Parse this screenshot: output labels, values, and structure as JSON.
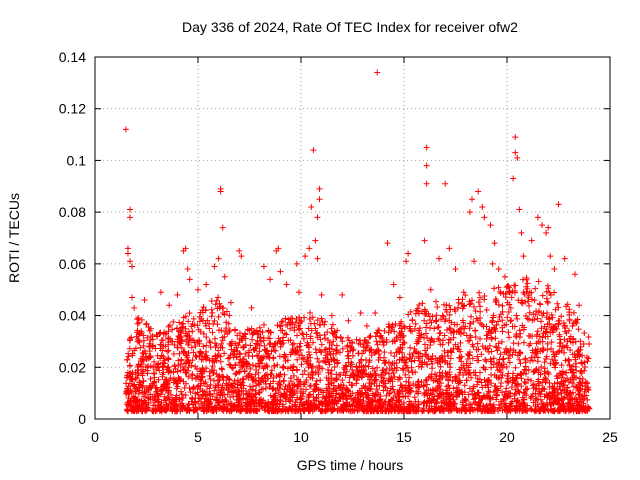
{
  "chart_data": {
    "type": "scatter",
    "title": "Day 336 of 2024, Rate Of TEC Index for receiver ofw2",
    "xlabel": "GPS time / hours",
    "ylabel": "ROTI / TECUs",
    "xlim": [
      0,
      25
    ],
    "ylim": [
      0,
      0.14
    ],
    "xticks": [
      0,
      5,
      10,
      15,
      20,
      25
    ],
    "yticks": [
      0,
      0.02,
      0.04,
      0.06,
      0.08,
      0.1,
      0.12,
      0.14
    ],
    "xtick_labels": [
      "0",
      "5",
      "10",
      "15",
      "20",
      "25"
    ],
    "ytick_labels": [
      "0",
      "0.02",
      "0.04",
      "0.06",
      "0.08",
      "0.1",
      "0.12",
      "0.14"
    ],
    "grid": true,
    "marker": "+",
    "series": [
      {
        "color": "#ff0000",
        "points": [
          [
            1.5,
            0.112
          ],
          [
            1.7,
            0.081
          ],
          [
            1.7,
            0.078
          ],
          [
            1.6,
            0.066
          ],
          [
            1.6,
            0.064
          ],
          [
            1.7,
            0.061
          ],
          [
            1.8,
            0.059
          ],
          [
            1.8,
            0.047
          ],
          [
            1.9,
            0.043
          ],
          [
            2.1,
            0.039
          ],
          [
            2.4,
            0.046
          ],
          [
            3.2,
            0.049
          ],
          [
            3.6,
            0.044
          ],
          [
            4.0,
            0.048
          ],
          [
            4.3,
            0.065
          ],
          [
            4.4,
            0.066
          ],
          [
            4.5,
            0.058
          ],
          [
            4.6,
            0.054
          ],
          [
            5.0,
            0.05
          ],
          [
            5.4,
            0.052
          ],
          [
            5.8,
            0.059
          ],
          [
            6.0,
            0.062
          ],
          [
            6.1,
            0.088
          ],
          [
            6.1,
            0.089
          ],
          [
            6.2,
            0.074
          ],
          [
            6.3,
            0.055
          ],
          [
            6.6,
            0.045
          ],
          [
            7.0,
            0.065
          ],
          [
            7.1,
            0.063
          ],
          [
            7.6,
            0.043
          ],
          [
            8.2,
            0.059
          ],
          [
            8.5,
            0.054
          ],
          [
            8.8,
            0.065
          ],
          [
            8.9,
            0.066
          ],
          [
            9.0,
            0.057
          ],
          [
            9.3,
            0.052
          ],
          [
            9.8,
            0.06
          ],
          [
            9.9,
            0.049
          ],
          [
            10.2,
            0.063
          ],
          [
            10.4,
            0.066
          ],
          [
            10.5,
            0.082
          ],
          [
            10.6,
            0.104
          ],
          [
            10.7,
            0.069
          ],
          [
            10.8,
            0.078
          ],
          [
            10.9,
            0.089
          ],
          [
            10.9,
            0.085
          ],
          [
            10.8,
            0.062
          ],
          [
            11.0,
            0.048
          ],
          [
            11.5,
            0.04
          ],
          [
            12.0,
            0.048
          ],
          [
            12.3,
            0.038
          ],
          [
            12.9,
            0.041
          ],
          [
            13.2,
            0.036
          ],
          [
            13.6,
            0.041
          ],
          [
            13.7,
            0.134
          ],
          [
            14.2,
            0.068
          ],
          [
            14.5,
            0.052
          ],
          [
            14.8,
            0.047
          ],
          [
            15.1,
            0.061
          ],
          [
            15.2,
            0.064
          ],
          [
            15.6,
            0.042
          ],
          [
            16.0,
            0.069
          ],
          [
            16.1,
            0.105
          ],
          [
            16.1,
            0.098
          ],
          [
            16.1,
            0.091
          ],
          [
            16.3,
            0.05
          ],
          [
            16.7,
            0.062
          ],
          [
            17.0,
            0.091
          ],
          [
            17.2,
            0.066
          ],
          [
            17.5,
            0.058
          ],
          [
            17.9,
            0.049
          ],
          [
            18.2,
            0.08
          ],
          [
            18.3,
            0.085
          ],
          [
            18.4,
            0.061
          ],
          [
            18.6,
            0.088
          ],
          [
            18.8,
            0.082
          ],
          [
            18.9,
            0.078
          ],
          [
            19.2,
            0.075
          ],
          [
            19.3,
            0.06
          ],
          [
            19.4,
            0.068
          ],
          [
            19.6,
            0.058
          ],
          [
            19.9,
            0.055
          ],
          [
            20.3,
            0.093
          ],
          [
            20.4,
            0.109
          ],
          [
            20.4,
            0.103
          ],
          [
            20.5,
            0.101
          ],
          [
            20.6,
            0.081
          ],
          [
            20.7,
            0.072
          ],
          [
            20.8,
            0.063
          ],
          [
            21.2,
            0.069
          ],
          [
            21.5,
            0.078
          ],
          [
            21.7,
            0.075
          ],
          [
            21.9,
            0.072
          ],
          [
            22.0,
            0.074
          ],
          [
            22.1,
            0.063
          ],
          [
            22.3,
            0.058
          ],
          [
            22.5,
            0.083
          ],
          [
            22.8,
            0.062
          ],
          [
            23.3,
            0.056
          ],
          [
            23.5,
            0.044
          ]
        ],
        "dense_band": {
          "x_start": 1.5,
          "x_end": 24.0,
          "y_floor": 0.003,
          "y_envelope": [
            [
              1.5,
              0.03
            ],
            [
              2.0,
              0.04
            ],
            [
              3.0,
              0.034
            ],
            [
              4.0,
              0.04
            ],
            [
              5.0,
              0.042
            ],
            [
              6.0,
              0.048
            ],
            [
              7.0,
              0.034
            ],
            [
              8.0,
              0.036
            ],
            [
              9.0,
              0.038
            ],
            [
              10.0,
              0.042
            ],
            [
              11.0,
              0.04
            ],
            [
              12.0,
              0.034
            ],
            [
              13.0,
              0.03
            ],
            [
              14.0,
              0.036
            ],
            [
              15.0,
              0.04
            ],
            [
              16.0,
              0.046
            ],
            [
              17.0,
              0.045
            ],
            [
              18.0,
              0.048
            ],
            [
              19.0,
              0.05
            ],
            [
              20.0,
              0.052
            ],
            [
              21.0,
              0.055
            ],
            [
              22.0,
              0.052
            ],
            [
              23.0,
              0.045
            ],
            [
              24.0,
              0.032
            ]
          ]
        }
      }
    ]
  }
}
